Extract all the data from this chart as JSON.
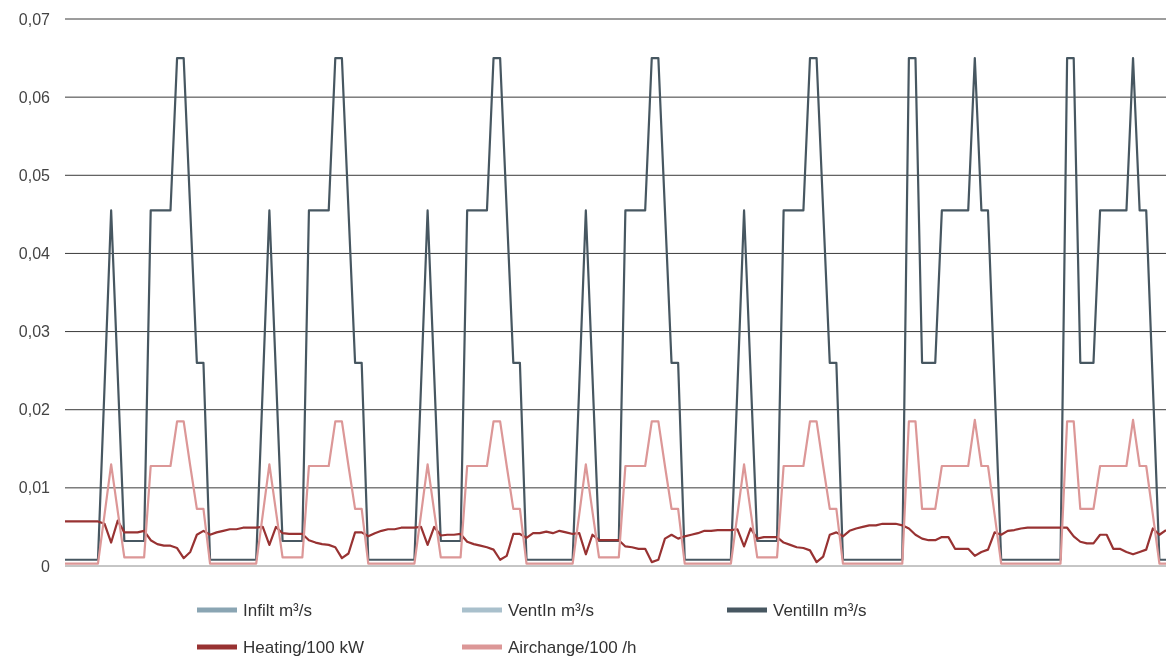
{
  "chart_data": {
    "type": "line",
    "categories": [
      null,
      null,
      null,
      null,
      null,
      null,
      null,
      null,
      null,
      null,
      null,
      null,
      null,
      null,
      null,
      null,
      null,
      null,
      null,
      null,
      null,
      null,
      null,
      null,
      null,
      null,
      null,
      null,
      null,
      null,
      null,
      null,
      null,
      null,
      null,
      null,
      null,
      null,
      null,
      null,
      null,
      null,
      null,
      null,
      null,
      null,
      null,
      null,
      null,
      null,
      null,
      null,
      null,
      null,
      null,
      null,
      null,
      null,
      null,
      null,
      null,
      null,
      null,
      null,
      null,
      null,
      null,
      null,
      null,
      null,
      null,
      null,
      null,
      null,
      null,
      null,
      null,
      null,
      null,
      null,
      null,
      null,
      null,
      null,
      null,
      null,
      null,
      null,
      null,
      null,
      null,
      null,
      null,
      null,
      null,
      null,
      null,
      null,
      null,
      null,
      null,
      null,
      null,
      null,
      null,
      null,
      null,
      null,
      null,
      null,
      null,
      null,
      null,
      null,
      null,
      null,
      null,
      null,
      null,
      null,
      null,
      null,
      null,
      null,
      null,
      null,
      null,
      null,
      null,
      null,
      null,
      null,
      null,
      null,
      null,
      null,
      null,
      null,
      null,
      null,
      null,
      null,
      null,
      null,
      null,
      null,
      null,
      null,
      null,
      null,
      null,
      null,
      null,
      null,
      null,
      null,
      null,
      null,
      null,
      null,
      null,
      null,
      null,
      null,
      null,
      null,
      null,
      null
    ],
    "ylim": [
      0,
      0.07
    ],
    "yticks": [
      0,
      {
        "value": 0.01,
        "label": "0,01"
      },
      {
        "value": 0.02,
        "label": "0,02"
      },
      {
        "value": 0.03,
        "label": "0,03"
      },
      {
        "value": 0.04,
        "label": "0,04"
      },
      {
        "value": 0.05,
        "label": "0,05"
      },
      {
        "value": 0.06,
        "label": "0,06"
      },
      {
        "value": 0.07,
        "label": "0,07"
      }
    ],
    "grid": "y",
    "legend": "bottom",
    "tick_labels": "y",
    "line_style": "solid",
    "marker": "none",
    "series": [
      {
        "name": "Infilt m³/s",
        "color": "#8aa5b3",
        "values": [
          null,
          null,
          null,
          null,
          null,
          null,
          null,
          null,
          null,
          null,
          null,
          null,
          null,
          null,
          null,
          null,
          null,
          null,
          null,
          null,
          null,
          null,
          null,
          null,
          null,
          null,
          null,
          null,
          null,
          null,
          null,
          null,
          null,
          null,
          null,
          null,
          null,
          null,
          null,
          null,
          null,
          null,
          null,
          null,
          null,
          null,
          null,
          null,
          null,
          null,
          null,
          null,
          null,
          null,
          null,
          null,
          null,
          null,
          null,
          null,
          null,
          null,
          null,
          null,
          null,
          null,
          null,
          null,
          null,
          null,
          null,
          null,
          null,
          null,
          null,
          null,
          null,
          null,
          null,
          null,
          null,
          null,
          null,
          null,
          null,
          null,
          null,
          null,
          null,
          null,
          null,
          null,
          null,
          null,
          null,
          null,
          null,
          null,
          null,
          null,
          null,
          null,
          null,
          null,
          null,
          null,
          null,
          null,
          null,
          null,
          null,
          null,
          null,
          null,
          null,
          null,
          null,
          null,
          null,
          null,
          null,
          null,
          null,
          null,
          null,
          null,
          null,
          null,
          null,
          null,
          null,
          null,
          null,
          null,
          null,
          null,
          null,
          null,
          null,
          null,
          null,
          null,
          null,
          null,
          null,
          null,
          null,
          null,
          null,
          null,
          null,
          null,
          null,
          null,
          null,
          null,
          null,
          null,
          null,
          null,
          null,
          null,
          null,
          null,
          null,
          null,
          null,
          null
        ]
      },
      {
        "name": "VentIn m³/s",
        "color": "#a9c0cc",
        "values": [
          null,
          null,
          null,
          null,
          null,
          null,
          null,
          null,
          null,
          null,
          null,
          null,
          null,
          null,
          null,
          null,
          null,
          null,
          null,
          null,
          null,
          null,
          null,
          null,
          null,
          null,
          null,
          null,
          null,
          null,
          null,
          null,
          null,
          null,
          null,
          null,
          null,
          null,
          null,
          null,
          null,
          null,
          null,
          null,
          null,
          null,
          null,
          null,
          null,
          null,
          null,
          null,
          null,
          null,
          null,
          null,
          null,
          null,
          null,
          null,
          null,
          null,
          null,
          null,
          null,
          null,
          null,
          null,
          null,
          null,
          null,
          null,
          null,
          null,
          null,
          null,
          null,
          null,
          null,
          null,
          null,
          null,
          null,
          null,
          null,
          null,
          null,
          null,
          null,
          null,
          null,
          null,
          null,
          null,
          null,
          null,
          null,
          null,
          null,
          null,
          null,
          null,
          null,
          null,
          null,
          null,
          null,
          null,
          null,
          null,
          null,
          null,
          null,
          null,
          null,
          null,
          null,
          null,
          null,
          null,
          null,
          null,
          null,
          null,
          null,
          null,
          null,
          null,
          null,
          null,
          null,
          null,
          null,
          null,
          null,
          null,
          null,
          null,
          null,
          null,
          null,
          null,
          null,
          null,
          null,
          null,
          null,
          null,
          null,
          null,
          null,
          null,
          null,
          null,
          null,
          null,
          null,
          null,
          null,
          null,
          null,
          null,
          null,
          null,
          null,
          null,
          null,
          null
        ]
      },
      {
        "name": "VentilIn m³/s",
        "color": "#475761",
        "values": [
          0.0008,
          0.0008,
          0.0008,
          0.0008,
          0.0008,
          0.0008,
          0.023,
          0.0455,
          0.0244,
          0.0032,
          0.0032,
          0.0032,
          0.0032,
          0.0455,
          0.0455,
          0.0455,
          0.0455,
          0.065,
          0.065,
          0.0455,
          0.026,
          0.026,
          0.0008,
          0.0008,
          0.0008,
          0.0008,
          0.0008,
          0.0008,
          0.0008,
          0.0008,
          0.023,
          0.0455,
          0.0244,
          0.0032,
          0.0032,
          0.0032,
          0.0032,
          0.0455,
          0.0455,
          0.0455,
          0.0455,
          0.065,
          0.065,
          0.0455,
          0.026,
          0.026,
          0.0008,
          0.0008,
          0.0008,
          0.0008,
          0.0008,
          0.0008,
          0.0008,
          0.0008,
          0.023,
          0.0455,
          0.0244,
          0.0032,
          0.0032,
          0.0032,
          0.0032,
          0.0455,
          0.0455,
          0.0455,
          0.0455,
          0.065,
          0.065,
          0.0455,
          0.026,
          0.026,
          0.0008,
          0.0008,
          0.0008,
          0.0008,
          0.0008,
          0.0008,
          0.0008,
          0.0008,
          0.023,
          0.0455,
          0.0244,
          0.0032,
          0.0032,
          0.0032,
          0.0032,
          0.0455,
          0.0455,
          0.0455,
          0.0455,
          0.065,
          0.065,
          0.0455,
          0.026,
          0.026,
          0.0008,
          0.0008,
          0.0008,
          0.0008,
          0.0008,
          0.0008,
          0.0008,
          0.0008,
          0.023,
          0.0455,
          0.0244,
          0.0032,
          0.0032,
          0.0032,
          0.0032,
          0.0455,
          0.0455,
          0.0455,
          0.0455,
          0.065,
          0.065,
          0.0455,
          0.026,
          0.026,
          0.0008,
          0.0008,
          0.0008,
          0.0008,
          0.0008,
          0.0008,
          0.0008,
          0.0008,
          0.0008,
          0.0008,
          0.065,
          0.065,
          0.026,
          0.026,
          0.026,
          0.0455,
          0.0455,
          0.0455,
          0.0455,
          0.0455,
          0.065,
          0.0455,
          0.0455,
          0.0232,
          0.0008,
          0.0008,
          0.0008,
          0.0008,
          0.0008,
          0.0008,
          0.0008,
          0.0008,
          0.0008,
          0.0008,
          0.065,
          0.065,
          0.026,
          0.026,
          0.026,
          0.0455,
          0.0455,
          0.0455,
          0.0455,
          0.0455,
          0.065,
          0.0455,
          0.0455,
          0.0232,
          0.0008,
          0.0008
        ]
      },
      {
        "name": "Heating/100 kW",
        "color": "#983232",
        "values": [
          0.0057,
          0.0057,
          0.0057,
          0.0057,
          0.0057,
          0.0057,
          0.0054,
          0.003,
          0.0058,
          0.0043,
          0.0043,
          0.0043,
          0.0045,
          0.0033,
          0.0028,
          0.0026,
          0.0026,
          0.0023,
          0.001,
          0.0018,
          0.004,
          0.0045,
          0.004,
          0.0043,
          0.0045,
          0.0047,
          0.0047,
          0.0049,
          0.0049,
          0.0049,
          0.005,
          0.0027,
          0.005,
          0.0042,
          0.0041,
          0.0041,
          0.0041,
          0.0033,
          0.003,
          0.0028,
          0.0027,
          0.0024,
          0.001,
          0.0016,
          0.0043,
          0.0043,
          0.0038,
          0.0042,
          0.0045,
          0.0047,
          0.0047,
          0.0049,
          0.0049,
          0.0049,
          0.005,
          0.0027,
          0.005,
          0.0039,
          0.004,
          0.004,
          0.0041,
          0.0031,
          0.0028,
          0.0026,
          0.0024,
          0.0021,
          0.0008,
          0.0013,
          0.0041,
          0.0041,
          0.0036,
          0.0042,
          0.0042,
          0.0044,
          0.0042,
          0.0045,
          0.0043,
          0.0041,
          0.0042,
          0.0015,
          0.004,
          0.0033,
          0.0033,
          0.0033,
          0.0033,
          0.0025,
          0.0024,
          0.0022,
          0.0022,
          0.0005,
          0.0008,
          0.0035,
          0.004,
          0.0035,
          0.0038,
          0.004,
          0.0042,
          0.0045,
          0.0045,
          0.0046,
          0.0046,
          0.0046,
          0.0047,
          0.0025,
          0.0048,
          0.0035,
          0.0037,
          0.0037,
          0.0037,
          0.003,
          0.0027,
          0.0024,
          0.0023,
          0.002,
          0.0005,
          0.0012,
          0.004,
          0.0043,
          0.0038,
          0.0045,
          0.0048,
          0.005,
          0.0052,
          0.0052,
          0.0054,
          0.0054,
          0.0054,
          0.0052,
          0.0048,
          0.004,
          0.0035,
          0.0033,
          0.0033,
          0.0037,
          0.0037,
          0.0022,
          0.0022,
          0.0022,
          0.0013,
          0.0018,
          0.0021,
          0.0043,
          0.004,
          0.0045,
          0.0046,
          0.0048,
          0.0049,
          0.0049,
          0.0049,
          0.0049,
          0.0049,
          0.0049,
          0.0049,
          0.0038,
          0.0031,
          0.0029,
          0.0029,
          0.004,
          0.004,
          0.0022,
          0.0022,
          0.0018,
          0.0015,
          0.0018,
          0.0021,
          0.0048,
          0.004,
          0.0046
        ]
      },
      {
        "name": "Airchange/100 /h",
        "color": "#dc9797",
        "values": [
          0.0003,
          0.0003,
          0.0003,
          0.0003,
          0.0003,
          0.0003,
          0.0066,
          0.013,
          0.007,
          0.0011,
          0.0011,
          0.0011,
          0.0011,
          0.0128,
          0.0128,
          0.0128,
          0.0128,
          0.0185,
          0.0185,
          0.0128,
          0.0073,
          0.0073,
          0.0003,
          0.0003,
          0.0003,
          0.0003,
          0.0003,
          0.0003,
          0.0003,
          0.0003,
          0.0066,
          0.013,
          0.007,
          0.0011,
          0.0011,
          0.0011,
          0.0011,
          0.0128,
          0.0128,
          0.0128,
          0.0128,
          0.0185,
          0.0185,
          0.0128,
          0.0073,
          0.0073,
          0.0003,
          0.0003,
          0.0003,
          0.0003,
          0.0003,
          0.0003,
          0.0003,
          0.0003,
          0.0066,
          0.013,
          0.007,
          0.0011,
          0.0011,
          0.0011,
          0.0011,
          0.0128,
          0.0128,
          0.0128,
          0.0128,
          0.0185,
          0.0185,
          0.0128,
          0.0073,
          0.0073,
          0.0003,
          0.0003,
          0.0003,
          0.0003,
          0.0003,
          0.0003,
          0.0003,
          0.0003,
          0.0066,
          0.013,
          0.007,
          0.0011,
          0.0011,
          0.0011,
          0.0011,
          0.0128,
          0.0128,
          0.0128,
          0.0128,
          0.0185,
          0.0185,
          0.0128,
          0.0073,
          0.0073,
          0.0003,
          0.0003,
          0.0003,
          0.0003,
          0.0003,
          0.0003,
          0.0003,
          0.0003,
          0.0066,
          0.013,
          0.007,
          0.0011,
          0.0011,
          0.0011,
          0.0011,
          0.0128,
          0.0128,
          0.0128,
          0.0128,
          0.0185,
          0.0185,
          0.0128,
          0.0073,
          0.0073,
          0.0003,
          0.0003,
          0.0003,
          0.0003,
          0.0003,
          0.0003,
          0.0003,
          0.0003,
          0.0003,
          0.0003,
          0.0185,
          0.0185,
          0.0073,
          0.0073,
          0.0073,
          0.0128,
          0.0128,
          0.0128,
          0.0128,
          0.0128,
          0.0187,
          0.0128,
          0.0128,
          0.0066,
          0.0003,
          0.0003,
          0.0003,
          0.0003,
          0.0003,
          0.0003,
          0.0003,
          0.0003,
          0.0003,
          0.0003,
          0.0185,
          0.0185,
          0.0073,
          0.0073,
          0.0073,
          0.0128,
          0.0128,
          0.0128,
          0.0128,
          0.0128,
          0.0187,
          0.0128,
          0.0128,
          0.0066,
          0.0003,
          0.0003
        ]
      }
    ]
  }
}
